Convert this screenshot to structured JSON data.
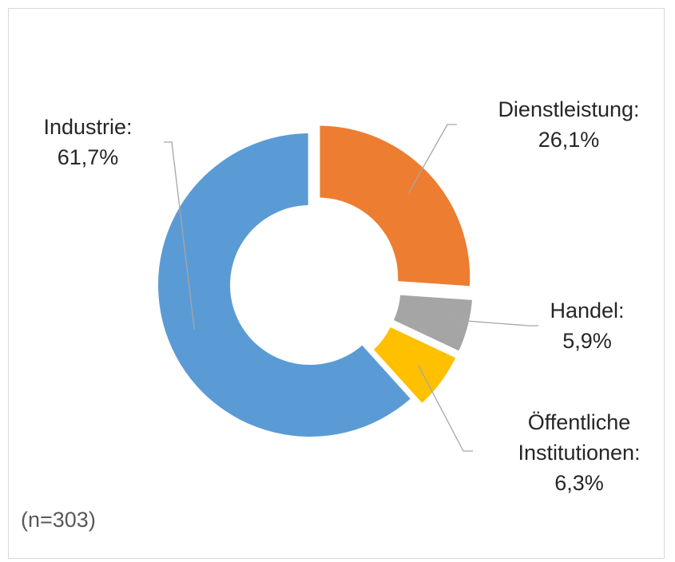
{
  "chart_data": {
    "type": "donut",
    "categories": [
      "Dienstleistung:",
      "Handel:",
      "Öffentliche Institutionen:",
      "Industrie:"
    ],
    "values": [
      26.1,
      5.9,
      6.3,
      61.7
    ],
    "value_labels": [
      "26,1%",
      "5,9%",
      "6,3%",
      "61,7%"
    ],
    "colors": [
      "#ed7d31",
      "#a5a5a5",
      "#ffc000",
      "#5b9bd5"
    ],
    "note": "(n=303)"
  }
}
